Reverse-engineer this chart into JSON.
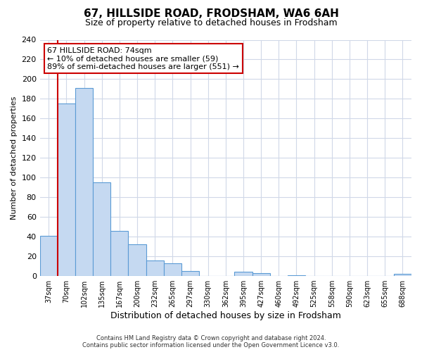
{
  "title": "67, HILLSIDE ROAD, FRODSHAM, WA6 6AH",
  "subtitle": "Size of property relative to detached houses in Frodsham",
  "xlabel": "Distribution of detached houses by size in Frodsham",
  "ylabel": "Number of detached properties",
  "bar_labels": [
    "37sqm",
    "70sqm",
    "102sqm",
    "135sqm",
    "167sqm",
    "200sqm",
    "232sqm",
    "265sqm",
    "297sqm",
    "330sqm",
    "362sqm",
    "395sqm",
    "427sqm",
    "460sqm",
    "492sqm",
    "525sqm",
    "558sqm",
    "590sqm",
    "623sqm",
    "655sqm",
    "688sqm"
  ],
  "bar_values": [
    41,
    175,
    191,
    95,
    46,
    32,
    16,
    13,
    5,
    0,
    0,
    4,
    3,
    0,
    1,
    0,
    0,
    0,
    0,
    0,
    2
  ],
  "bar_color": "#c5d9f1",
  "bar_edge_color": "#5b9bd5",
  "highlight_color": "#cc0000",
  "annotation_title": "67 HILLSIDE ROAD: 74sqm",
  "annotation_line1": "← 10% of detached houses are smaller (59)",
  "annotation_line2": "89% of semi-detached houses are larger (551) →",
  "annotation_box_color": "#ffffff",
  "annotation_box_edge_color": "#cc0000",
  "ylim": [
    0,
    240
  ],
  "yticks": [
    0,
    20,
    40,
    60,
    80,
    100,
    120,
    140,
    160,
    180,
    200,
    220,
    240
  ],
  "footer_line1": "Contains HM Land Registry data © Crown copyright and database right 2024.",
  "footer_line2": "Contains public sector information licensed under the Open Government Licence v3.0.",
  "bg_color": "#ffffff",
  "grid_color": "#d0d8e8"
}
